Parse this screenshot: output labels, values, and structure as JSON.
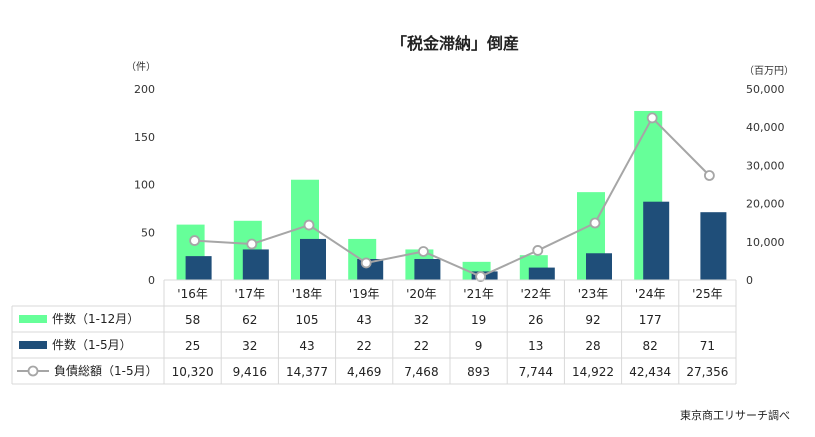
{
  "chart_data": {
    "type": "bar",
    "title": "「税金滞納」倒産",
    "y_left_unit": "（件）",
    "y_right_unit": "（百万円）",
    "categories": [
      "'16年",
      "'17年",
      "'18年",
      "'19年",
      "'20年",
      "'21年",
      "'22年",
      "'23年",
      "'24年",
      "'25年"
    ],
    "ylim_left": [
      0,
      200
    ],
    "yticks_left": [
      "0",
      "50",
      "100",
      "150",
      "200"
    ],
    "ylim_right": [
      0,
      50000
    ],
    "yticks_right": [
      "0",
      "10,000",
      "20,000",
      "30,000",
      "40,000",
      "50,000"
    ],
    "grid": false,
    "series": [
      {
        "name": "件数（1-12月）",
        "type": "bar",
        "color": "#66ff99",
        "values": [
          58,
          62,
          105,
          43,
          32,
          19,
          26,
          92,
          177,
          null
        ],
        "labels": [
          "58",
          "62",
          "105",
          "43",
          "32",
          "19",
          "26",
          "92",
          "177",
          ""
        ]
      },
      {
        "name": "件数（1-5月）",
        "type": "bar",
        "color": "#1f4e79",
        "values": [
          25,
          32,
          43,
          22,
          22,
          9,
          13,
          28,
          82,
          71
        ],
        "labels": [
          "25",
          "32",
          "43",
          "22",
          "22",
          "9",
          "13",
          "28",
          "82",
          "71"
        ]
      },
      {
        "name": "負債総額（1-5月）",
        "type": "line",
        "axis": "right",
        "color": "#a6a6a6",
        "values": [
          10320,
          9416,
          14377,
          4469,
          7468,
          893,
          7744,
          14922,
          42434,
          27356
        ],
        "labels": [
          "10,320",
          "9,416",
          "14,377",
          "4,469",
          "7,468",
          "893",
          "7,744",
          "14,922",
          "42,434",
          "27,356"
        ]
      }
    ],
    "source": "東京商工リサーチ調べ"
  }
}
